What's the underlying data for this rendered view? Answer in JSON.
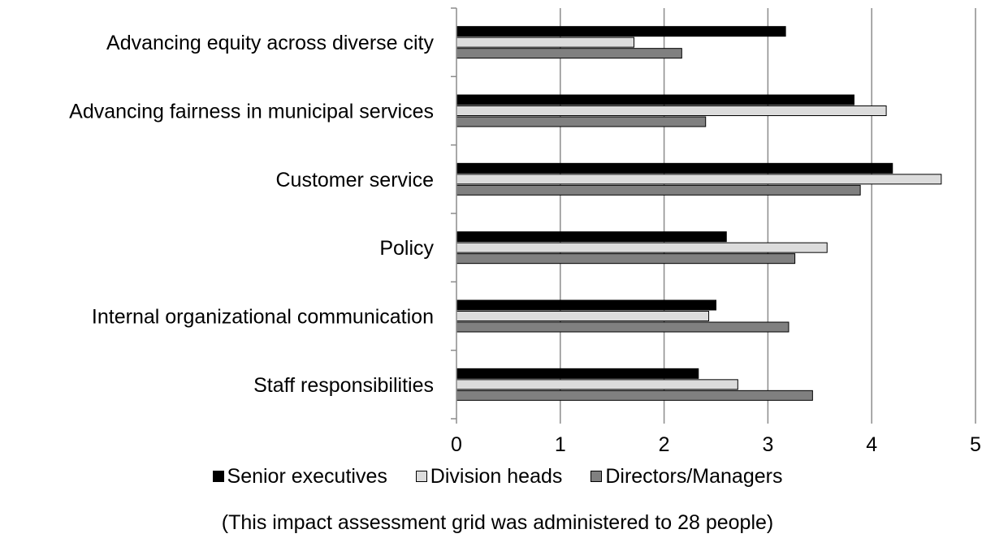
{
  "chart_data": {
    "type": "bar",
    "orientation": "horizontal",
    "categories": [
      "Advancing equity across diverse city",
      "Advancing fairness in municipal services",
      "Customer service",
      "Policy",
      "Internal organizational communication",
      "Staff responsibilities"
    ],
    "series": [
      {
        "name": "Senior executives",
        "color": "#000000",
        "values": [
          3.17,
          3.83,
          4.2,
          2.6,
          2.5,
          2.33
        ]
      },
      {
        "name": "Division heads",
        "color": "#dcdcdc",
        "values": [
          1.71,
          4.14,
          4.67,
          3.57,
          2.43,
          2.71
        ]
      },
      {
        "name": "Directors/Managers",
        "color": "#808080",
        "values": [
          2.17,
          2.4,
          3.89,
          3.26,
          3.2,
          3.43
        ]
      }
    ],
    "xlim": [
      0,
      5
    ],
    "xticks": [
      "0",
      "1",
      "2",
      "3",
      "4",
      "5"
    ],
    "grid": "vertical",
    "legend_position": "bottom",
    "note": "(This impact assessment grid was administered to 28 people)"
  }
}
